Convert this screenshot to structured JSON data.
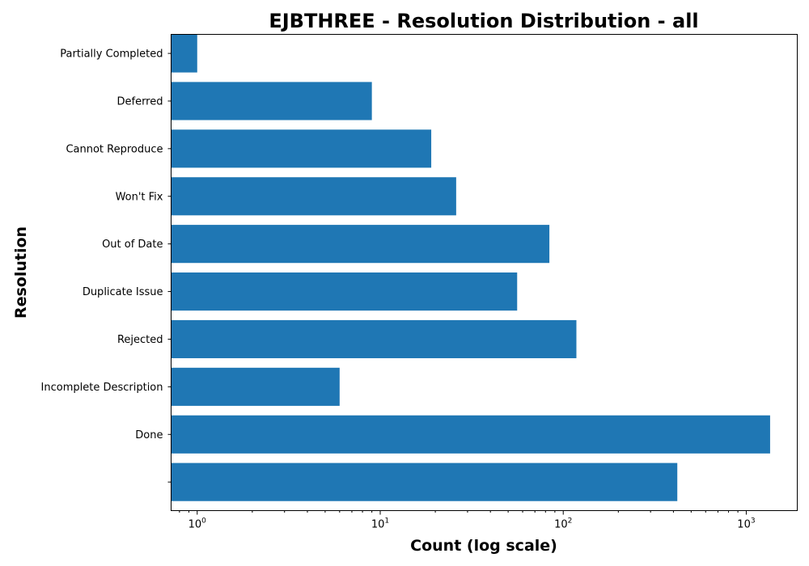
{
  "chart_data": {
    "type": "bar",
    "orientation": "horizontal",
    "title": "EJBTHREE - Resolution Distribution - all",
    "xlabel": "Count (log scale)",
    "ylabel": "Resolution",
    "x_scale": "log",
    "xlim": [
      0.72,
      1900
    ],
    "categories": [
      "",
      "Done",
      "Incomplete Description",
      "Rejected",
      "Duplicate Issue",
      "Out of Date",
      "Won't Fix",
      "Cannot Reproduce",
      "Deferred",
      "Partially Completed"
    ],
    "values": [
      420,
      1350,
      6,
      118,
      56,
      84,
      26,
      19,
      9,
      1
    ],
    "x_ticks": [
      {
        "value": 1,
        "base": "10",
        "exp": "0"
      },
      {
        "value": 10,
        "base": "10",
        "exp": "1"
      },
      {
        "value": 100,
        "base": "10",
        "exp": "2"
      },
      {
        "value": 1000,
        "base": "10",
        "exp": "3"
      }
    ],
    "bar_color": "#1f77b4",
    "grid": false,
    "legend": "none"
  }
}
